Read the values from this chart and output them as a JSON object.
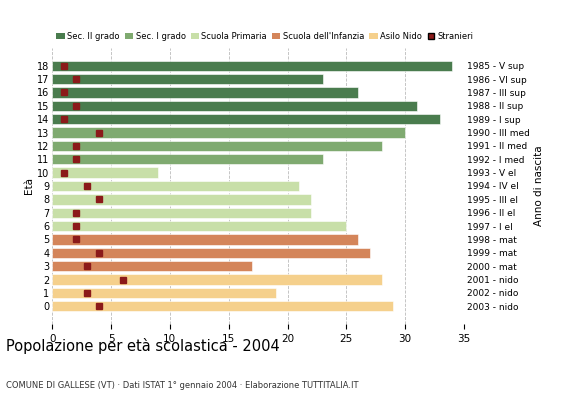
{
  "ages": [
    18,
    17,
    16,
    15,
    14,
    13,
    12,
    11,
    10,
    9,
    8,
    7,
    6,
    5,
    4,
    3,
    2,
    1,
    0
  ],
  "years": [
    "1985 - V sup",
    "1986 - VI sup",
    "1987 - III sup",
    "1988 - II sup",
    "1989 - I sup",
    "1990 - III med",
    "1991 - II med",
    "1992 - I med",
    "1993 - V el",
    "1994 - IV el",
    "1995 - III el",
    "1996 - II el",
    "1997 - I el",
    "1998 - mat",
    "1999 - mat",
    "2000 - mat",
    "2001 - nido",
    "2002 - nido",
    "2003 - nido"
  ],
  "bar_values": [
    34,
    23,
    26,
    31,
    33,
    30,
    28,
    23,
    9,
    21,
    22,
    22,
    25,
    26,
    27,
    17,
    28,
    19,
    29
  ],
  "stranieri": [
    1,
    2,
    1,
    2,
    1,
    4,
    2,
    2,
    1,
    3,
    4,
    2,
    2,
    2,
    4,
    3,
    6,
    3,
    4
  ],
  "cat_sec2": [
    14,
    15,
    16,
    17,
    18
  ],
  "cat_sec1": [
    11,
    12,
    13
  ],
  "cat_prim": [
    6,
    7,
    8,
    9,
    10
  ],
  "cat_infanzia": [
    3,
    4,
    5
  ],
  "cat_nido": [
    0,
    1,
    2
  ],
  "color_sec2": "#4a7c4e",
  "color_sec1": "#7faa70",
  "color_prim": "#c8dfa8",
  "color_infanzia": "#d4855a",
  "color_nido": "#f5d08c",
  "stranieri_color": "#8b1a1a",
  "title": "Popolazione per età scolastica - 2004",
  "subtitle": "COMUNE DI GALLESE (VT) · Dati ISTAT 1° gennaio 2004 · Elaborazione TUTTITALIA.IT",
  "xlim": [
    0,
    35
  ],
  "xticks": [
    0,
    5,
    10,
    15,
    20,
    25,
    30,
    35
  ],
  "legend_labels": [
    "Sec. II grado",
    "Sec. I grado",
    "Scuola Primaria",
    "Scuola dell'Infanzia",
    "Asilo Nido",
    "Stranieri"
  ],
  "bar_height": 0.78,
  "background_color": "#ffffff",
  "grid_color": "#bbbbbb",
  "eta_label": "Età",
  "anno_label": "Anno di nascita"
}
